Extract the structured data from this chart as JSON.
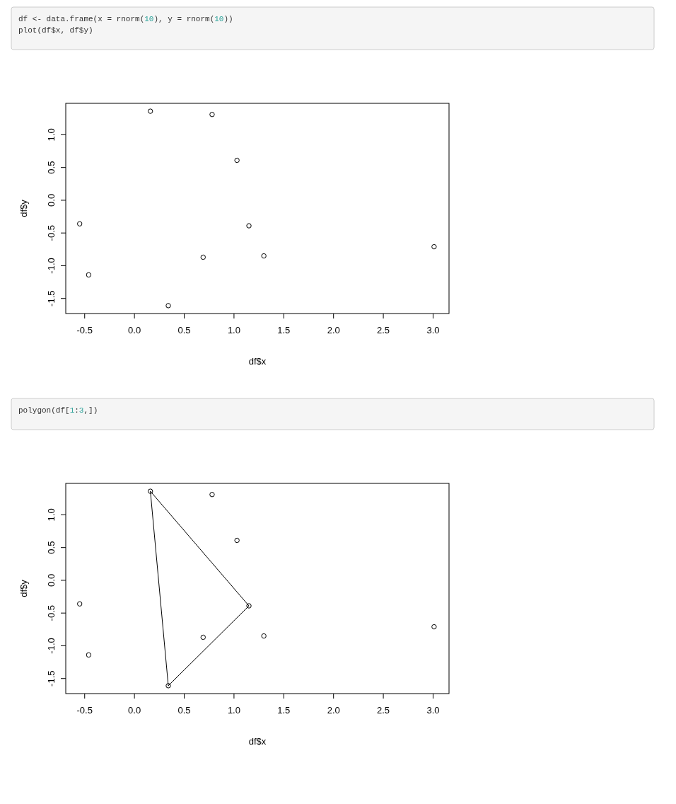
{
  "chart_data": [
    {
      "type": "scatter",
      "annotations": [
        "df <- data.frame(x = rnorm(10), y = rnorm(10))",
        "plot(df$x, df$y)"
      ],
      "xlabel": "df$x",
      "ylabel": "df$y",
      "xlim": [
        -0.69,
        3.16
      ],
      "ylim": [
        -1.73,
        1.48
      ],
      "xticks": [
        {
          "value": -0.5,
          "label": "-0.5"
        },
        {
          "value": 0,
          "label": "0.0"
        },
        {
          "value": 0.5,
          "label": "0.5"
        },
        {
          "value": 1,
          "label": "1.0"
        },
        {
          "value": 1.5,
          "label": "1.5"
        },
        {
          "value": 2,
          "label": "2.0"
        },
        {
          "value": 2.5,
          "label": "2.5"
        },
        {
          "value": 3,
          "label": "3.0"
        }
      ],
      "yticks": [
        {
          "value": -1.5,
          "label": "-1.5"
        },
        {
          "value": -1,
          "label": "-1.0"
        },
        {
          "value": -0.5,
          "label": "-0.5"
        },
        {
          "value": 0,
          "label": "0.0"
        },
        {
          "value": 0.5,
          "label": "0.5"
        },
        {
          "value": 1,
          "label": "1.0"
        }
      ],
      "grid": false,
      "marker": "circle",
      "series": [
        {
          "color": "#000000",
          "x": [
            0.16,
            1.15,
            0.34,
            0.78,
            1.03,
            -0.55,
            1.3,
            0.69,
            -0.46,
            3.01
          ],
          "values": [
            1.36,
            -0.39,
            -1.61,
            1.31,
            0.61,
            -0.36,
            -0.85,
            -0.87,
            -1.14,
            -0.71
          ]
        }
      ]
    },
    {
      "type": "scatter",
      "annotations": [
        "polygon(df[1:3,])"
      ],
      "xlabel": "df$x",
      "ylabel": "df$y",
      "xlim": [
        -0.69,
        3.16
      ],
      "ylim": [
        -1.73,
        1.48
      ],
      "xticks": [
        {
          "value": -0.5,
          "label": "-0.5"
        },
        {
          "value": 0,
          "label": "0.0"
        },
        {
          "value": 0.5,
          "label": "0.5"
        },
        {
          "value": 1,
          "label": "1.0"
        },
        {
          "value": 1.5,
          "label": "1.5"
        },
        {
          "value": 2,
          "label": "2.0"
        },
        {
          "value": 2.5,
          "label": "2.5"
        },
        {
          "value": 3,
          "label": "3.0"
        }
      ],
      "yticks": [
        {
          "value": -1.5,
          "label": "-1.5"
        },
        {
          "value": -1,
          "label": "-1.0"
        },
        {
          "value": -0.5,
          "label": "-0.5"
        },
        {
          "value": 0,
          "label": "0.0"
        },
        {
          "value": 0.5,
          "label": "0.5"
        },
        {
          "value": 1,
          "label": "1.0"
        }
      ],
      "grid": false,
      "marker": "circle",
      "series": [
        {
          "color": "#000000",
          "x": [
            0.16,
            1.15,
            0.34,
            0.78,
            1.03,
            -0.55,
            1.3,
            0.69,
            -0.46,
            3.01
          ],
          "values": [
            1.36,
            -0.39,
            -1.61,
            1.31,
            0.61,
            -0.36,
            -0.85,
            -0.87,
            -1.14,
            -0.71
          ]
        },
        {
          "type": "line",
          "color": "#000000",
          "marker": "none",
          "line_style": "solid",
          "x": [
            0.16,
            1.15
          ],
          "values": [
            1.36,
            -0.39
          ]
        },
        {
          "type": "line",
          "color": "#000000",
          "marker": "none",
          "line_style": "solid",
          "x": [
            0.34,
            1.15
          ],
          "values": [
            -1.61,
            -0.39
          ]
        },
        {
          "type": "line",
          "color": "#000000",
          "marker": "none",
          "line_style": "solid",
          "x": [
            0.16,
            0.34
          ],
          "values": [
            1.36,
            -1.61
          ]
        }
      ]
    }
  ]
}
